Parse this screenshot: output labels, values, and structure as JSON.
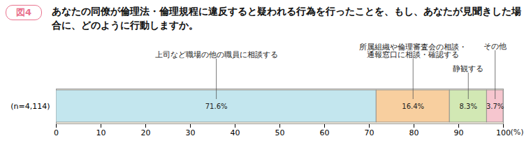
{
  "chart_data": {
    "type": "bar",
    "orientation": "horizontal",
    "stacked": true,
    "title": "あなたの同僚が倫理法・倫理規程に違反すると疑われる行為を行ったことを、もし、あなたが見聞きした場合に、どのように行動しますか。",
    "annotations": [
      "図4"
    ],
    "xlabel": "(%)",
    "categories": [
      "(n=4,114)"
    ],
    "series": [
      {
        "name": "上司など職場の他の職員に相談する",
        "color": "#c3e6ee",
        "values": [
          71.6
        ],
        "value_labels": [
          "71.6%"
        ]
      },
      {
        "name": "所属組織や倫理審査会の相談・\n通報窓口に相談・確認する",
        "color": "#f8cf9f",
        "values": [
          16.4
        ],
        "value_labels": [
          "16.4%"
        ]
      },
      {
        "name": "静観する",
        "color": "#d2e8b4",
        "values": [
          8.3
        ],
        "value_labels": [
          "8.3%"
        ]
      },
      {
        "name": "その他",
        "color": "#f6c6cf",
        "values": [
          3.7
        ],
        "value_labels": [
          "3.7%"
        ]
      }
    ],
    "xlim": [
      0,
      100
    ],
    "xticks": [
      0,
      10,
      20,
      30,
      40,
      50,
      60,
      70,
      80,
      90,
      100
    ],
    "data_labels": true,
    "grid": false
  }
}
